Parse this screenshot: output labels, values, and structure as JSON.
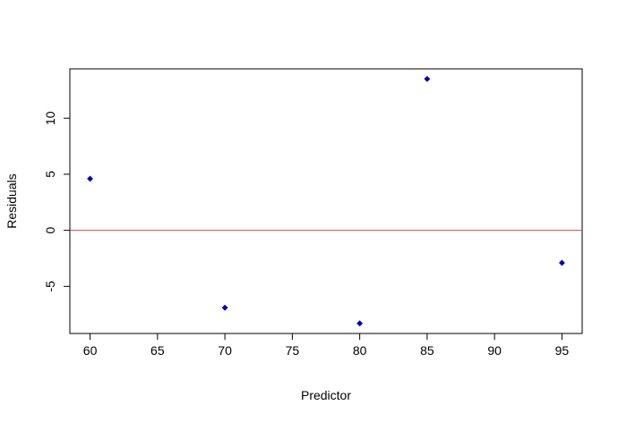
{
  "chart_data": {
    "type": "scatter",
    "title": "",
    "xlabel": "Predictor",
    "ylabel": "Residuals",
    "xlim": [
      58.5,
      96.5
    ],
    "ylim": [
      -9.2,
      14.4
    ],
    "x_ticks": [
      60,
      65,
      70,
      75,
      80,
      85,
      90,
      95
    ],
    "y_ticks": [
      -5,
      0,
      5,
      10
    ],
    "points": [
      {
        "x": 60,
        "y": 4.6
      },
      {
        "x": 70,
        "y": -6.9
      },
      {
        "x": 80,
        "y": -8.3
      },
      {
        "x": 85,
        "y": 13.5
      },
      {
        "x": 95,
        "y": -2.9
      }
    ],
    "reference_line": {
      "y": 0,
      "color": "#e8414e"
    },
    "point_color": "#0000b4",
    "grid": false,
    "legend": "none"
  }
}
